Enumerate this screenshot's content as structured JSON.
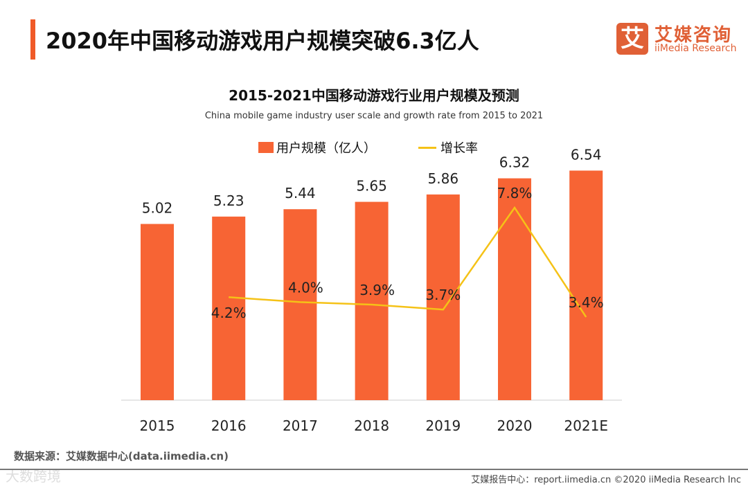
{
  "header": {
    "title": "2020年中国移动游戏用户规模突破6.3亿人",
    "logo_mark": "艾",
    "logo_cn": "艾媒咨询",
    "logo_en": "iiMedia Research"
  },
  "chart_data": {
    "type": "bar+line",
    "title": "2015-2021中国移动游戏行业用户规模及预测",
    "subtitle": "China mobile game industry user scale and growth rate from 2015 to 2021",
    "categories": [
      "2015",
      "2016",
      "2017",
      "2018",
      "2019",
      "2020",
      "2021E"
    ],
    "series": [
      {
        "name": "用户规模（亿人）",
        "type": "bar",
        "values": [
          5.02,
          5.23,
          5.44,
          5.65,
          5.86,
          6.32,
          6.54
        ],
        "labels": [
          "5.02",
          "5.23",
          "5.44",
          "5.65",
          "5.86",
          "6.32",
          "6.54"
        ]
      },
      {
        "name": "增长率",
        "type": "line",
        "values": [
          null,
          4.2,
          4.0,
          3.9,
          3.7,
          7.8,
          3.4
        ],
        "labels": [
          "",
          "4.2%",
          "4.0%",
          "3.9%",
          "3.7%",
          "7.8%",
          "3.4%"
        ]
      }
    ],
    "legend_position": "top-center",
    "grid": false
  },
  "colors": {
    "bar": "#f76434",
    "line": "#f5c217",
    "accent": "#f05a28"
  },
  "footer": {
    "source": "数据来源：艾媒数据中心(data.iimedia.cn)",
    "copyright": "艾媒报告中心：report.iimedia.cn   ©2020  iiMedia Research  Inc",
    "watermark": "大数跨境"
  }
}
